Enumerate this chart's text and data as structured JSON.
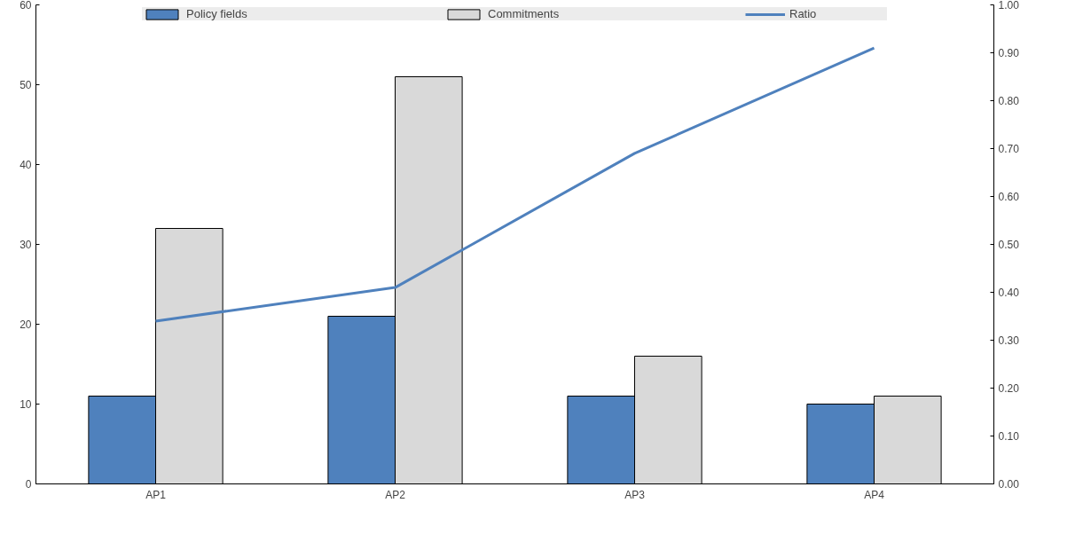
{
  "chart_data": {
    "type": "bar",
    "categories": [
      "AP1",
      "AP2",
      "AP3",
      "AP4"
    ],
    "series": [
      {
        "name": "Policy fields",
        "color": "#4f81bd",
        "values": [
          11,
          21,
          11,
          10
        ]
      },
      {
        "name": "Commitments",
        "color": "#d9d9d9",
        "values": [
          32,
          51,
          16,
          11
        ]
      },
      {
        "name": "Ratio",
        "type": "line",
        "axis": "y2",
        "color": "#4f81bd",
        "values": [
          0.34,
          0.41,
          0.69,
          0.91
        ]
      }
    ],
    "ylim": [
      0,
      60
    ],
    "yticks": [
      0,
      10,
      20,
      30,
      40,
      50,
      60
    ],
    "y2lim": [
      0,
      1
    ],
    "y2ticks": [
      {
        "value": 0,
        "label": "0.00"
      },
      {
        "value": 0.1,
        "label": "0.10"
      },
      {
        "value": 0.2,
        "label": "0.20"
      },
      {
        "value": 0.3,
        "label": "0.30"
      },
      {
        "value": 0.4,
        "label": "0.40"
      },
      {
        "value": 0.5,
        "label": "0.50"
      },
      {
        "value": 0.6,
        "label": "0.60"
      },
      {
        "value": 0.7,
        "label": "0.70"
      },
      {
        "value": 0.8,
        "label": "0.80"
      },
      {
        "value": 0.9,
        "label": "0.90"
      },
      {
        "value": 1,
        "label": "1.00"
      }
    ],
    "grid": false,
    "legend": "top"
  }
}
